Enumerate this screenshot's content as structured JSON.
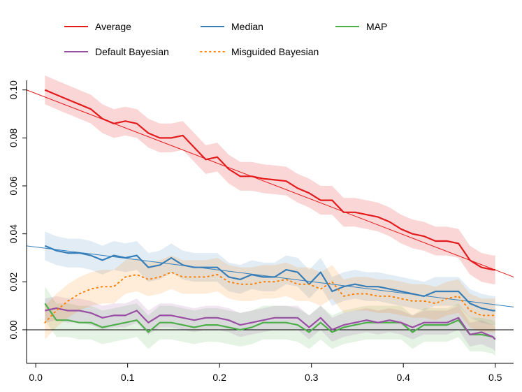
{
  "chart_data": {
    "type": "line",
    "title": "",
    "xlabel": "",
    "ylabel": "",
    "xlim": [
      -0.01,
      0.52
    ],
    "ylim": [
      -0.014,
      0.104
    ],
    "xticks": [
      0.0,
      0.1,
      0.2,
      0.3,
      0.4,
      0.5
    ],
    "xtick_labels": [
      "0.0",
      "0.1",
      "0.2",
      "0.3",
      "0.4",
      "0.5"
    ],
    "yticks": [
      0.0,
      0.02,
      0.04,
      0.06,
      0.08,
      0.1
    ],
    "ytick_labels": [
      "0.00",
      "0.02",
      "0.04",
      "0.06",
      "0.08",
      "0.10"
    ],
    "hline": 0.0,
    "legend": {
      "placement": "top",
      "entries": [
        "Average",
        "Median",
        "MAP",
        "Default Bayesian",
        "Misguided Bayesian"
      ]
    },
    "x": [
      0.01,
      0.0225,
      0.035,
      0.0475,
      0.06,
      0.0725,
      0.085,
      0.0975,
      0.11,
      0.1225,
      0.135,
      0.1475,
      0.16,
      0.1725,
      0.185,
      0.1975,
      0.21,
      0.2225,
      0.235,
      0.2475,
      0.26,
      0.2725,
      0.285,
      0.2975,
      0.31,
      0.3225,
      0.335,
      0.3475,
      0.36,
      0.3725,
      0.385,
      0.3975,
      0.41,
      0.4225,
      0.435,
      0.4475,
      0.46,
      0.4725,
      0.485,
      0.4975,
      0.5
    ],
    "series": [
      {
        "name": "Average",
        "color": "#e41a1c",
        "style": "solid",
        "band_opacity": 0.18,
        "band": 0.006,
        "values": [
          0.1,
          0.098,
          0.096,
          0.094,
          0.092,
          0.088,
          0.086,
          0.087,
          0.086,
          0.082,
          0.08,
          0.08,
          0.081,
          0.076,
          0.071,
          0.072,
          0.067,
          0.064,
          0.064,
          0.063,
          0.0625,
          0.062,
          0.059,
          0.057,
          0.054,
          0.054,
          0.049,
          0.049,
          0.048,
          0.047,
          0.045,
          0.042,
          0.04,
          0.039,
          0.037,
          0.037,
          0.036,
          0.029,
          0.026,
          0.025,
          0.025
        ],
        "fit": {
          "y_at_xmin": 0.1,
          "y_at_xmax": 0.022
        }
      },
      {
        "name": "Median",
        "color": "#377eb8",
        "style": "solid",
        "band_opacity": 0.15,
        "band": 0.006,
        "values": [
          0.035,
          0.033,
          0.032,
          0.032,
          0.031,
          0.029,
          0.031,
          0.03,
          0.031,
          0.026,
          0.027,
          0.03,
          0.027,
          0.026,
          0.026,
          0.026,
          0.022,
          0.021,
          0.023,
          0.022,
          0.022,
          0.025,
          0.024,
          0.019,
          0.024,
          0.016,
          0.018,
          0.019,
          0.018,
          0.018,
          0.017,
          0.016,
          0.015,
          0.014,
          0.016,
          0.016,
          0.016,
          0.011,
          0.009,
          0.008,
          0.008
        ],
        "fit": {
          "y_at_xmin": 0.035,
          "y_at_xmax": 0.0095
        }
      },
      {
        "name": "MAP",
        "color": "#4daf4a",
        "style": "solid",
        "band_opacity": 0.15,
        "band": 0.007,
        "values": [
          0.011,
          0.004,
          0.004,
          0.003,
          0.003,
          0.001,
          0.002,
          0.003,
          0.004,
          -0.001,
          0.003,
          0.003,
          0.002,
          0.001,
          0.002,
          0.002,
          0.001,
          0.0,
          0.001,
          0.003,
          0.003,
          0.003,
          0.002,
          -0.001,
          0.003,
          -0.001,
          0.001,
          0.002,
          0.003,
          0.003,
          0.003,
          0.003,
          -0.001,
          0.002,
          0.002,
          0.002,
          0.004,
          -0.002,
          -0.002,
          -0.003,
          -0.004
        ]
      },
      {
        "name": "Default Bayesian",
        "color": "#984ea3",
        "style": "solid",
        "band_opacity": 0.15,
        "band": 0.005,
        "values": [
          0.008,
          0.009,
          0.008,
          0.008,
          0.007,
          0.005,
          0.006,
          0.006,
          0.008,
          0.003,
          0.006,
          0.006,
          0.005,
          0.004,
          0.005,
          0.005,
          0.004,
          0.002,
          0.003,
          0.004,
          0.005,
          0.005,
          0.005,
          0.001,
          0.005,
          0.0,
          0.002,
          0.003,
          0.004,
          0.003,
          0.004,
          0.003,
          0.001,
          0.003,
          0.003,
          0.003,
          0.005,
          -0.002,
          -0.001,
          -0.003,
          -0.004
        ]
      },
      {
        "name": "Misguided Bayesian",
        "color": "#ff7f00",
        "style": "dotted",
        "band_opacity": 0.15,
        "band": 0.007,
        "values": [
          0.003,
          0.008,
          0.012,
          0.015,
          0.017,
          0.018,
          0.018,
          0.022,
          0.023,
          0.021,
          0.022,
          0.024,
          0.022,
          0.022,
          0.022,
          0.023,
          0.02,
          0.019,
          0.019,
          0.02,
          0.02,
          0.021,
          0.019,
          0.019,
          0.017,
          0.02,
          0.014,
          0.015,
          0.015,
          0.014,
          0.014,
          0.013,
          0.012,
          0.012,
          0.011,
          0.013,
          0.014,
          0.008,
          0.006,
          0.006,
          0.006
        ]
      }
    ]
  }
}
